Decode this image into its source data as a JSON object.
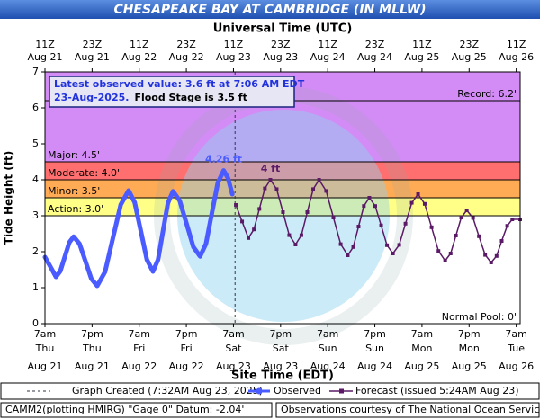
{
  "chart_data": {
    "type": "line",
    "title": "CHESAPEAKE BAY AT CAMBRIDGE (IN MLLW)",
    "top_axis_label": "Universal Time (UTC)",
    "x_label": "Site Time (EDT)",
    "y_label": "Tide Height (ft)",
    "xlim": [
      0,
      121
    ],
    "ylim": [
      0,
      7
    ],
    "yticks": [
      0,
      1,
      2,
      3,
      4,
      5,
      6,
      7
    ],
    "xticks": [
      {
        "value": 0,
        "label": [
          "7am",
          "Thu",
          "Aug 21"
        ]
      },
      {
        "value": 12,
        "label": [
          "7pm",
          "Thu",
          "Aug 21"
        ]
      },
      {
        "value": 24,
        "label": [
          "7am",
          "Fri",
          "Aug 22"
        ]
      },
      {
        "value": 36,
        "label": [
          "7pm",
          "Fri",
          "Aug 22"
        ]
      },
      {
        "value": 48,
        "label": [
          "7am",
          "Sat",
          "Aug 23"
        ]
      },
      {
        "value": 60,
        "label": [
          "7pm",
          "Sat",
          "Aug 23"
        ]
      },
      {
        "value": 72,
        "label": [
          "7am",
          "Sun",
          "Aug 24"
        ]
      },
      {
        "value": 84,
        "label": [
          "7pm",
          "Sun",
          "Aug 24"
        ]
      },
      {
        "value": 96,
        "label": [
          "7am",
          "Mon",
          "Aug 25"
        ]
      },
      {
        "value": 108,
        "label": [
          "7pm",
          "Mon",
          "Aug 25"
        ]
      },
      {
        "value": 120,
        "label": [
          "7am",
          "Tue",
          "Aug 26"
        ]
      }
    ],
    "top_xticks": [
      {
        "value": 0,
        "label": [
          "11Z",
          "Aug 21"
        ]
      },
      {
        "value": 12,
        "label": [
          "23Z",
          "Aug 21"
        ]
      },
      {
        "value": 24,
        "label": [
          "11Z",
          "Aug 22"
        ]
      },
      {
        "value": 36,
        "label": [
          "23Z",
          "Aug 22"
        ]
      },
      {
        "value": 48,
        "label": [
          "11Z",
          "Aug 23"
        ]
      },
      {
        "value": 60,
        "label": [
          "23Z",
          "Aug 23"
        ]
      },
      {
        "value": 72,
        "label": [
          "11Z",
          "Aug 24"
        ]
      },
      {
        "value": 84,
        "label": [
          "23Z",
          "Aug 24"
        ]
      },
      {
        "value": 96,
        "label": [
          "11Z",
          "Aug 25"
        ]
      },
      {
        "value": 108,
        "label": [
          "23Z",
          "Aug 25"
        ]
      },
      {
        "value": 120,
        "label": [
          "11Z",
          "Aug 26"
        ]
      }
    ],
    "stages": [
      {
        "label": "Action: 3.0'",
        "value": 3.0,
        "color": "#ffff88"
      },
      {
        "label": "Minor: 3.5'",
        "value": 3.5,
        "color": "#ffaa55"
      },
      {
        "label": "Moderate: 4.0'",
        "value": 4.0,
        "color": "#ff6f6f"
      },
      {
        "label": "Major: 4.5'",
        "value": 4.5,
        "color": "#d38cf5"
      }
    ],
    "record": {
      "label": "Record: 6.2'",
      "value": 6.2
    },
    "normal_pool": {
      "label": "Normal Pool: 0'",
      "value": 0
    },
    "info": [
      "Latest observed value: 3.6 ft at 7:06 AM EDT",
      "23-Aug-2025.",
      "Flood Stage is 3.5 ft"
    ],
    "created": {
      "label": "Graph Created (7:32AM Aug 23, 2025)",
      "x": 48.4
    },
    "series": [
      {
        "name": "Observed",
        "color": "#4a5cff",
        "peak_label": "4.26 ft",
        "x": [
          0,
          1.4,
          2.8,
          3.9,
          5.05,
          6.2,
          7.3,
          8.8,
          10.3,
          11.8,
          13.3,
          15.3,
          17.3,
          19.3,
          21.3,
          22.85,
          24.4,
          25.95,
          27.5,
          28.8,
          30.05,
          31.3,
          32.6,
          34.3,
          36.05,
          37.8,
          39.5,
          41,
          42.5,
          44,
          45.5,
          46.6,
          47.7
        ],
        "values": [
          1.85,
          1.58,
          1.3,
          1.46,
          1.86,
          2.26,
          2.42,
          2.22,
          1.74,
          1.25,
          1.05,
          1.44,
          2.38,
          3.31,
          3.7,
          3.37,
          2.58,
          1.78,
          1.45,
          1.78,
          2.57,
          3.35,
          3.68,
          3.42,
          2.78,
          2.13,
          1.87,
          2.22,
          3.07,
          3.91,
          4.26,
          4.05,
          3.6
        ]
      },
      {
        "name": "Forecast (issued 5:24AM Aug 23)",
        "color": "#5a1a66",
        "peak_label": "4 ft",
        "x": [
          48.6,
          50.2,
          51.8,
          53.2,
          54.6,
          56.0,
          57.4,
          59.0,
          60.6,
          62.2,
          63.8,
          65.3,
          66.8,
          68.3,
          69.8,
          71.6,
          73.45,
          75.3,
          77.1,
          78.5,
          79.85,
          81.2,
          82.6,
          84.1,
          85.6,
          87.1,
          88.6,
          90.2,
          91.8,
          93.4,
          95,
          96.7,
          98.45,
          100.2,
          101.9,
          103.3,
          104.65,
          106,
          107.4,
          109,
          110.5,
          112.1,
          113.6,
          115,
          116.3,
          117.7,
          119,
          121
        ],
        "values": [
          3.3,
          2.84,
          2.38,
          2.62,
          3.19,
          3.76,
          4.0,
          3.74,
          3.1,
          2.46,
          2.2,
          2.46,
          3.1,
          3.74,
          4.0,
          3.69,
          2.95,
          2.21,
          1.9,
          2.13,
          2.7,
          3.27,
          3.5,
          3.27,
          2.73,
          2.18,
          1.95,
          2.19,
          2.78,
          3.36,
          3.6,
          3.33,
          2.68,
          2.02,
          1.75,
          1.95,
          2.45,
          2.95,
          3.15,
          2.94,
          2.43,
          1.91,
          1.7,
          1.88,
          2.3,
          2.72,
          2.9,
          2.9
        ]
      }
    ],
    "footer_left": "CAMM2(plotting HMIRG) \"Gage 0\" Datum: -2.04'",
    "footer_right": "Observations courtesy of The National Ocean Service"
  }
}
